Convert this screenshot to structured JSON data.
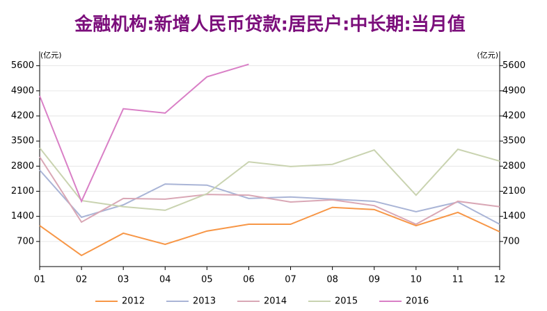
{
  "chart_data": {
    "type": "line",
    "title": "金融机构:新增人民币贷款:居民户:中长期:当月值",
    "ylabel": "(亿元)",
    "y2label": "(亿元)",
    "categories": [
      "01",
      "02",
      "03",
      "04",
      "05",
      "06",
      "07",
      "08",
      "09",
      "10",
      "11",
      "12"
    ],
    "ylim": [
      0,
      6000
    ],
    "yticks": [
      700,
      1400,
      2100,
      2800,
      3500,
      4200,
      4900,
      5600
    ],
    "y2lim": [
      0,
      6000
    ],
    "y2ticks": [
      700,
      1400,
      2100,
      2800,
      3500,
      4200,
      4900,
      5600
    ],
    "grid": true,
    "legend": "bottom",
    "series": [
      {
        "name": "2012",
        "color": "#f79646",
        "values": [
          1143,
          310,
          930,
          620,
          990,
          1180,
          1180,
          1650,
          1590,
          1140,
          1510,
          970
        ]
      },
      {
        "name": "2013",
        "color": "#a9b4d6",
        "values": [
          2690,
          1375,
          1720,
          2300,
          2270,
          1900,
          1940,
          1880,
          1820,
          1530,
          1800,
          1180
        ]
      },
      {
        "name": "2014",
        "color": "#d9a7b5",
        "values": [
          3060,
          1240,
          1900,
          1880,
          2010,
          1990,
          1800,
          1860,
          1700,
          1180,
          1820,
          1670
        ]
      },
      {
        "name": "2015",
        "color": "#c9d3b0",
        "values": [
          3310,
          1840,
          1670,
          1570,
          2030,
          2920,
          2790,
          2850,
          3250,
          1990,
          3270,
          2940
        ]
      },
      {
        "name": "2016",
        "color": "#d97fc6",
        "values": [
          4760,
          1820,
          4400,
          4280,
          5290,
          5640,
          null,
          null,
          null,
          null,
          null,
          null
        ]
      }
    ]
  }
}
